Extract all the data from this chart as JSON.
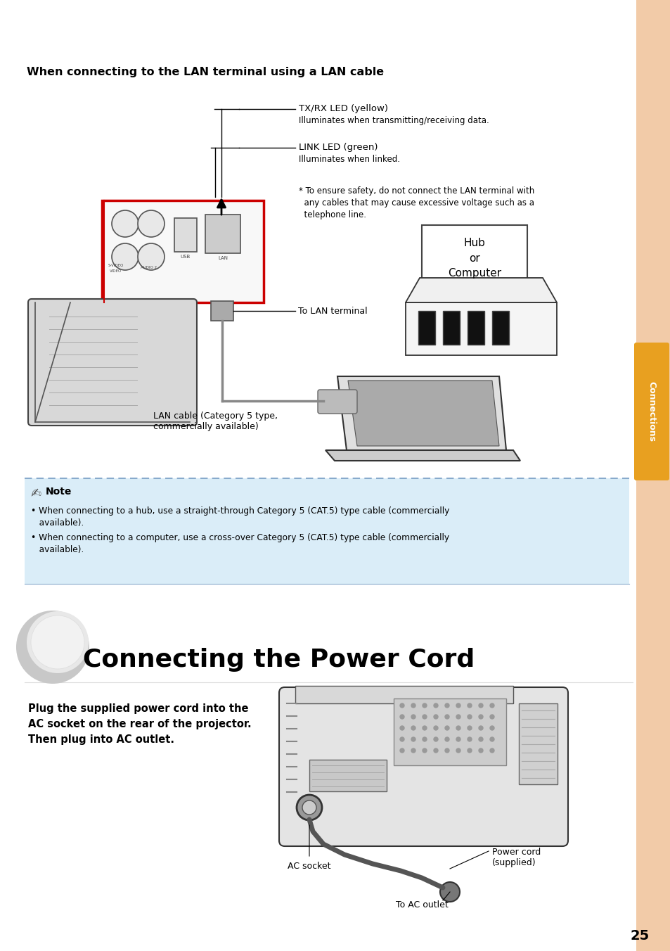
{
  "bg_color": "#ffffff",
  "sidebar_color": "#f2cba8",
  "sidebar_tab_color": "#e8a020",
  "sidebar_tab_text": "Connections",
  "page_number": "25",
  "section1_title": "When connecting to the LAN terminal using a LAN cable",
  "label_txrx": "TX/RX LED (yellow)",
  "label_txrx_sub": "Illuminates when transmitting/receiving data.",
  "label_link": "LINK LED (green)",
  "label_link_sub": "Illuminates when linked.",
  "label_safety_1": "* To ensure safety, do not connect the LAN terminal with",
  "label_safety_2": "  any cables that may cause excessive voltage such as a",
  "label_safety_3": "  telephone line.",
  "label_to_lan": "To LAN terminal",
  "label_hub": "Hub\nor\nComputer",
  "label_lan_cable": "LAN cable (Category 5 type,\ncommercially available)",
  "note_bg": "#daedf8",
  "note_title": "Note",
  "note_bullet1a": "• When connecting to a hub, use a straight-through Category 5 (CAT.5) type cable (commercially",
  "note_bullet1b": "   available).",
  "note_bullet2a": "• When connecting to a computer, use a cross-over Category 5 (CAT.5) type cable (commercially",
  "note_bullet2b": "   available).",
  "section2_title": "Connecting the Power Cord",
  "section2_line1": "Plug the supplied power cord into the",
  "section2_line2": "AC socket on the rear of the projector.",
  "section2_line3": "Then plug into AC outlet.",
  "label_ac_socket": "AC socket",
  "label_power_cord": "Power cord\n(supplied)",
  "label_to_ac": "To AC outlet"
}
